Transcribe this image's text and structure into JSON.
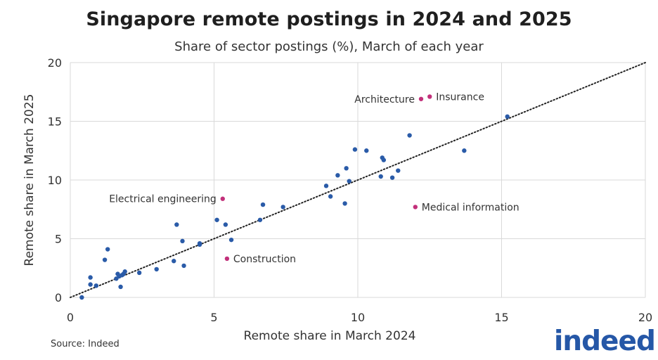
{
  "title": "Singapore remote postings in 2024 and 2025",
  "subtitle": "Share of sector postings (%), March of each year",
  "source": "Source: Indeed",
  "logo_text": "indeed",
  "colors": {
    "point": "#2a5ba8",
    "highlight": "#c2307a",
    "grid": "#d9d9d9",
    "logo": "#2557a7"
  },
  "chart_data": {
    "type": "scatter",
    "xlabel": "Remote share in March 2024",
    "ylabel": "Remote share in March 2025",
    "xlim": [
      0,
      20
    ],
    "ylim": [
      0,
      20
    ],
    "xticks": [
      0,
      5,
      10,
      15,
      20
    ],
    "yticks": [
      0,
      5,
      10,
      15,
      20
    ],
    "grid": true,
    "reference_line": "y = x (dotted)",
    "points": [
      {
        "x": 0.4,
        "y": 0.0
      },
      {
        "x": 0.7,
        "y": 1.1
      },
      {
        "x": 0.7,
        "y": 1.7
      },
      {
        "x": 0.9,
        "y": 1.0
      },
      {
        "x": 1.2,
        "y": 3.2
      },
      {
        "x": 1.3,
        "y": 4.1
      },
      {
        "x": 1.6,
        "y": 1.6
      },
      {
        "x": 1.65,
        "y": 2.0
      },
      {
        "x": 1.7,
        "y": 1.8
      },
      {
        "x": 1.75,
        "y": 0.9
      },
      {
        "x": 1.8,
        "y": 1.9
      },
      {
        "x": 1.85,
        "y": 2.0
      },
      {
        "x": 1.9,
        "y": 2.2
      },
      {
        "x": 2.4,
        "y": 2.1
      },
      {
        "x": 3.0,
        "y": 2.4
      },
      {
        "x": 3.6,
        "y": 3.1
      },
      {
        "x": 3.7,
        "y": 6.2
      },
      {
        "x": 3.9,
        "y": 4.8
      },
      {
        "x": 3.95,
        "y": 2.7
      },
      {
        "x": 4.5,
        "y": 4.5
      },
      {
        "x": 4.5,
        "y": 4.6
      },
      {
        "x": 5.1,
        "y": 6.6
      },
      {
        "x": 5.4,
        "y": 6.2
      },
      {
        "x": 5.6,
        "y": 4.9
      },
      {
        "x": 6.6,
        "y": 6.6
      },
      {
        "x": 6.7,
        "y": 7.9
      },
      {
        "x": 7.4,
        "y": 7.7
      },
      {
        "x": 8.9,
        "y": 9.5
      },
      {
        "x": 9.05,
        "y": 8.6
      },
      {
        "x": 9.3,
        "y": 10.4
      },
      {
        "x": 9.55,
        "y": 8.0
      },
      {
        "x": 9.6,
        "y": 11.0
      },
      {
        "x": 9.7,
        "y": 9.9
      },
      {
        "x": 9.9,
        "y": 12.6
      },
      {
        "x": 10.3,
        "y": 12.5
      },
      {
        "x": 10.8,
        "y": 10.3
      },
      {
        "x": 10.85,
        "y": 11.9
      },
      {
        "x": 10.9,
        "y": 11.7
      },
      {
        "x": 11.2,
        "y": 10.2
      },
      {
        "x": 11.4,
        "y": 10.8
      },
      {
        "x": 11.8,
        "y": 13.8
      },
      {
        "x": 13.7,
        "y": 12.5
      },
      {
        "x": 15.2,
        "y": 15.4
      }
    ],
    "highlighted": [
      {
        "label": "Architecture",
        "x": 12.2,
        "y": 16.9,
        "label_side": "left"
      },
      {
        "label": "Insurance",
        "x": 12.5,
        "y": 17.1,
        "label_side": "right"
      },
      {
        "label": "Electrical engineering",
        "x": 5.3,
        "y": 8.4,
        "label_side": "left"
      },
      {
        "label": "Medical information",
        "x": 12.0,
        "y": 7.7,
        "label_side": "right"
      },
      {
        "label": "Construction",
        "x": 5.45,
        "y": 3.3,
        "label_side": "right"
      }
    ]
  }
}
